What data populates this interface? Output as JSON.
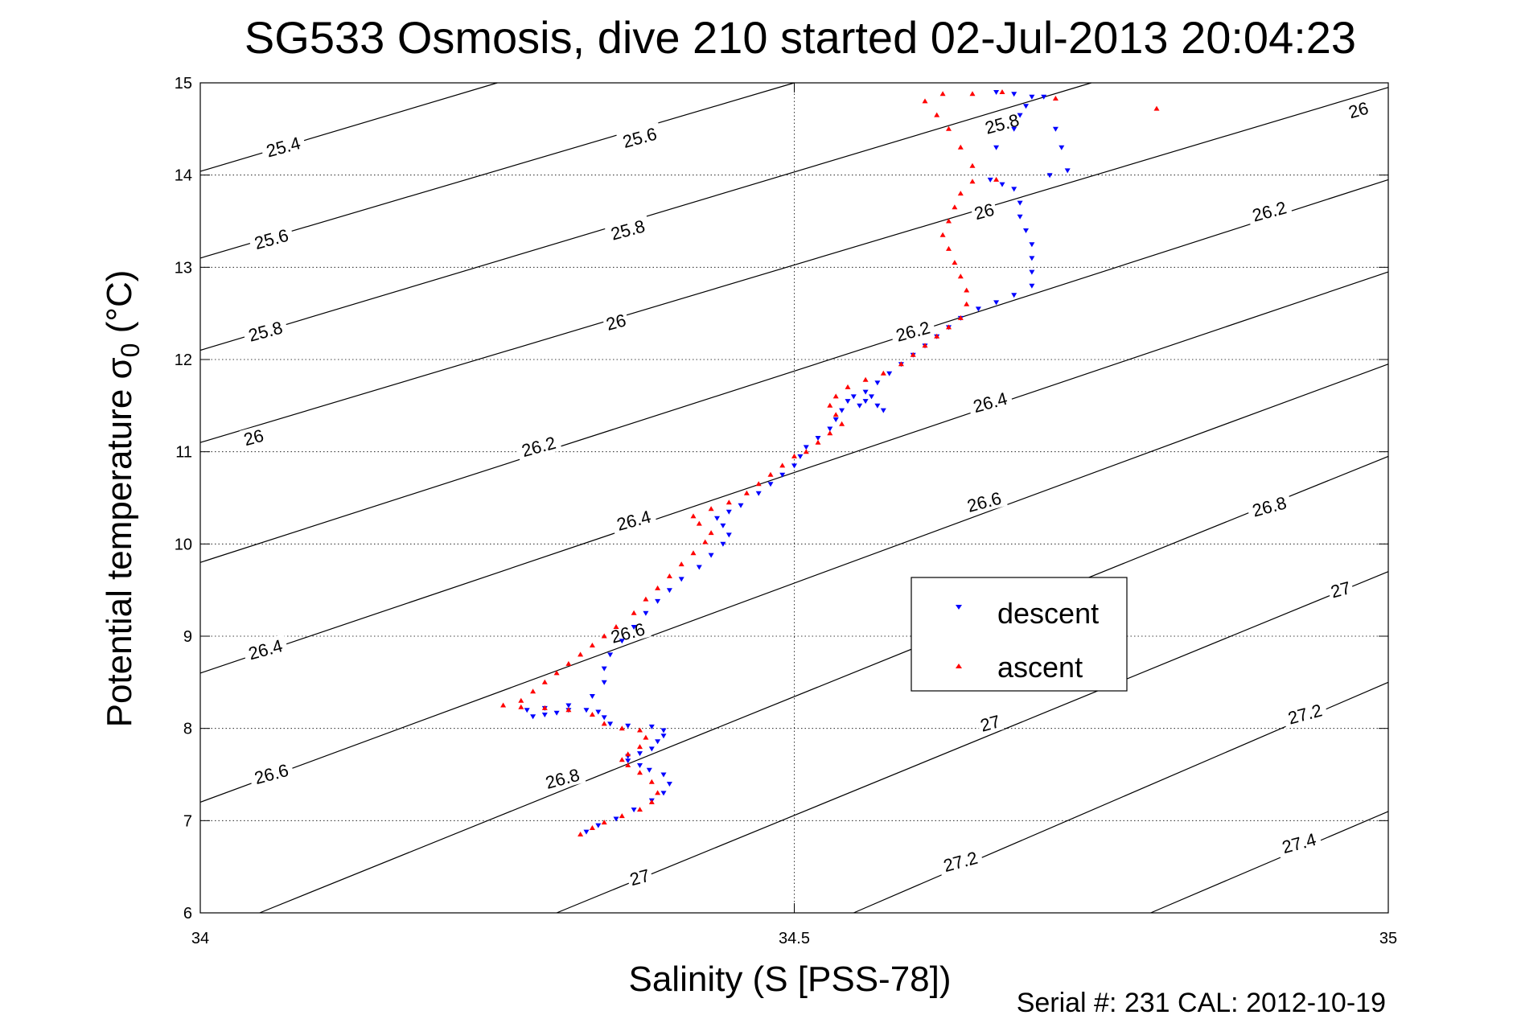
{
  "figure": {
    "title": "SG533 Osmosis, dive 210 started 02-Jul-2013 20:04:23",
    "footer": "Serial #: 231  CAL: 2012-10-19"
  },
  "colors": {
    "descent": "#0000ff",
    "ascent": "#ff0000",
    "axes": "#000000",
    "grid": "#000000"
  },
  "chart_data": {
    "type": "scatter",
    "title": "SG533 Osmosis, dive 210 started 02-Jul-2013 20:04:23",
    "xlabel": "Salinity (S [PSS-78])",
    "ylabel_main": "Potential temperature σ",
    "ylabel_sub": "0",
    "ylabel_unit": " (°C)",
    "xlim": [
      34,
      35
    ],
    "ylim": [
      6,
      15
    ],
    "xticks": [
      34,
      34.5,
      35
    ],
    "xtick_labels": [
      "34",
      "34.5",
      "35"
    ],
    "yticks": [
      6,
      7,
      8,
      9,
      10,
      11,
      12,
      13,
      14,
      15
    ],
    "ytick_labels": [
      "6",
      "7",
      "8",
      "9",
      "10",
      "11",
      "12",
      "13",
      "14",
      "15"
    ],
    "grid": "dotted at ticks",
    "legend": {
      "placement": "center-right",
      "entries": [
        "descent",
        "ascent"
      ]
    },
    "isopycnals": {
      "levels": [
        25.4,
        25.6,
        25.8,
        26,
        26.2,
        26.4,
        26.6,
        26.8,
        27,
        27.2,
        27.4
      ],
      "lines": [
        {
          "points": [
            [
              34,
              14.04
            ],
            [
              34.25,
              15
            ]
          ]
        },
        {
          "points": [
            [
              34,
              13.1
            ],
            [
              34.5,
              15
            ]
          ]
        },
        {
          "points": [
            [
              34,
              12.1
            ],
            [
              34.75,
              15
            ]
          ]
        },
        {
          "points": [
            [
              34,
              11.1
            ],
            [
              35,
              14.95
            ]
          ]
        },
        {
          "points": [
            [
              34,
              9.8
            ],
            [
              35,
              13.95
            ]
          ]
        },
        {
          "points": [
            [
              34,
              8.6
            ],
            [
              35,
              12.95
            ]
          ]
        },
        {
          "points": [
            [
              34,
              7.2
            ],
            [
              35,
              11.95
            ]
          ]
        },
        {
          "points": [
            [
              34.05,
              6
            ],
            [
              35,
              10.95
            ]
          ]
        },
        {
          "points": [
            [
              34.3,
              6
            ],
            [
              35,
              9.7
            ]
          ]
        },
        {
          "points": [
            [
              34.55,
              6
            ],
            [
              35,
              8.5
            ]
          ]
        },
        {
          "points": [
            [
              34.8,
              6
            ],
            [
              35,
              7.1
            ]
          ]
        }
      ],
      "labels": [
        {
          "text": "25.4",
          "x": 34.07,
          "y": 14.3
        },
        {
          "text": "25.6",
          "x": 34.06,
          "y": 13.3
        },
        {
          "text": "25.8",
          "x": 34.055,
          "y": 12.3
        },
        {
          "text": "26",
          "x": 34.045,
          "y": 11.15
        },
        {
          "text": "26.4",
          "x": 34.055,
          "y": 8.85
        },
        {
          "text": "26.6",
          "x": 34.06,
          "y": 7.5
        },
        {
          "text": "25.6",
          "x": 34.37,
          "y": 14.4
        },
        {
          "text": "25.8",
          "x": 34.36,
          "y": 13.4
        },
        {
          "text": "26",
          "x": 34.35,
          "y": 12.4
        },
        {
          "text": "26.2",
          "x": 34.285,
          "y": 11.05
        },
        {
          "text": "26.4",
          "x": 34.365,
          "y": 10.25
        },
        {
          "text": "26.6",
          "x": 34.36,
          "y": 9.03
        },
        {
          "text": "26.8",
          "x": 34.305,
          "y": 7.45
        },
        {
          "text": "27",
          "x": 34.37,
          "y": 6.38
        },
        {
          "text": "25.8",
          "x": 34.675,
          "y": 14.55
        },
        {
          "text": "26",
          "x": 34.66,
          "y": 13.6
        },
        {
          "text": "26.2",
          "x": 34.6,
          "y": 12.3
        },
        {
          "text": "26.4",
          "x": 34.665,
          "y": 11.53
        },
        {
          "text": "26.6",
          "x": 34.66,
          "y": 10.45
        },
        {
          "text": "27",
          "x": 34.665,
          "y": 8.05
        },
        {
          "text": "27.2",
          "x": 34.64,
          "y": 6.55
        },
        {
          "text": "26",
          "x": 34.975,
          "y": 14.7
        },
        {
          "text": "26.2",
          "x": 34.9,
          "y": 13.6
        },
        {
          "text": "26.8",
          "x": 34.9,
          "y": 10.4
        },
        {
          "text": "27",
          "x": 34.96,
          "y": 9.5
        },
        {
          "text": "27.2",
          "x": 34.93,
          "y": 8.15
        },
        {
          "text": "27.4",
          "x": 34.925,
          "y": 6.75
        }
      ]
    },
    "series": [
      {
        "name": "descent",
        "marker": "down-triangle",
        "points": [
          [
            34.325,
            6.88
          ],
          [
            34.335,
            6.95
          ],
          [
            34.35,
            7.02
          ],
          [
            34.365,
            7.12
          ],
          [
            34.38,
            7.22
          ],
          [
            34.39,
            7.3
          ],
          [
            34.395,
            7.4
          ],
          [
            34.39,
            7.5
          ],
          [
            34.378,
            7.55
          ],
          [
            34.37,
            7.6
          ],
          [
            34.36,
            7.65
          ],
          [
            34.36,
            7.7
          ],
          [
            34.37,
            7.73
          ],
          [
            34.38,
            7.78
          ],
          [
            34.385,
            7.86
          ],
          [
            34.39,
            7.92
          ],
          [
            34.39,
            7.98
          ],
          [
            34.38,
            8.02
          ],
          [
            34.36,
            8.03
          ],
          [
            34.345,
            8.05
          ],
          [
            34.34,
            8.12
          ],
          [
            34.335,
            8.18
          ],
          [
            34.325,
            8.2
          ],
          [
            34.31,
            8.2
          ],
          [
            34.3,
            8.17
          ],
          [
            34.29,
            8.15
          ],
          [
            34.28,
            8.13
          ],
          [
            34.275,
            8.2
          ],
          [
            34.29,
            8.22
          ],
          [
            34.31,
            8.25
          ],
          [
            34.33,
            8.35
          ],
          [
            34.34,
            8.5
          ],
          [
            34.34,
            8.65
          ],
          [
            34.345,
            8.8
          ],
          [
            34.355,
            8.95
          ],
          [
            34.365,
            9.1
          ],
          [
            34.375,
            9.25
          ],
          [
            34.385,
            9.38
          ],
          [
            34.395,
            9.5
          ],
          [
            34.405,
            9.62
          ],
          [
            34.42,
            9.75
          ],
          [
            34.43,
            9.88
          ],
          [
            34.44,
            10.0
          ],
          [
            34.445,
            10.1
          ],
          [
            34.44,
            10.2
          ],
          [
            34.435,
            10.28
          ],
          [
            34.445,
            10.35
          ],
          [
            34.455,
            10.42
          ],
          [
            34.47,
            10.55
          ],
          [
            34.48,
            10.65
          ],
          [
            34.49,
            10.75
          ],
          [
            34.5,
            10.85
          ],
          [
            34.505,
            10.95
          ],
          [
            34.51,
            11.05
          ],
          [
            34.52,
            11.15
          ],
          [
            34.53,
            11.25
          ],
          [
            34.535,
            11.35
          ],
          [
            34.54,
            11.45
          ],
          [
            34.545,
            11.55
          ],
          [
            34.55,
            11.6
          ],
          [
            34.56,
            11.65
          ],
          [
            34.565,
            11.6
          ],
          [
            34.56,
            11.55
          ],
          [
            34.555,
            11.5
          ],
          [
            34.57,
            11.5
          ],
          [
            34.575,
            11.45
          ],
          [
            34.57,
            11.75
          ],
          [
            34.58,
            11.85
          ],
          [
            34.59,
            11.95
          ],
          [
            34.6,
            12.05
          ],
          [
            34.61,
            12.15
          ],
          [
            34.62,
            12.25
          ],
          [
            34.63,
            12.35
          ],
          [
            34.64,
            12.45
          ],
          [
            34.655,
            12.55
          ],
          [
            34.67,
            12.62
          ],
          [
            34.685,
            12.7
          ],
          [
            34.7,
            12.8
          ],
          [
            34.7,
            12.95
          ],
          [
            34.7,
            13.1
          ],
          [
            34.7,
            13.25
          ],
          [
            34.695,
            13.4
          ],
          [
            34.69,
            13.55
          ],
          [
            34.69,
            13.7
          ],
          [
            34.685,
            13.85
          ],
          [
            34.675,
            13.9
          ],
          [
            34.665,
            13.95
          ],
          [
            34.67,
            14.3
          ],
          [
            34.685,
            14.5
          ],
          [
            34.69,
            14.65
          ],
          [
            34.695,
            14.75
          ],
          [
            34.7,
            14.85
          ],
          [
            34.685,
            14.88
          ],
          [
            34.67,
            14.9
          ],
          [
            34.71,
            14.85
          ],
          [
            34.72,
            14.5
          ],
          [
            34.725,
            14.3
          ],
          [
            34.73,
            14.05
          ],
          [
            34.715,
            14.0
          ]
        ]
      },
      {
        "name": "ascent",
        "marker": "up-triangle",
        "points": [
          [
            34.32,
            6.85
          ],
          [
            34.33,
            6.92
          ],
          [
            34.34,
            6.98
          ],
          [
            34.355,
            7.05
          ],
          [
            34.37,
            7.12
          ],
          [
            34.38,
            7.2
          ],
          [
            34.385,
            7.3
          ],
          [
            34.38,
            7.42
          ],
          [
            34.37,
            7.52
          ],
          [
            34.36,
            7.6
          ],
          [
            34.355,
            7.66
          ],
          [
            34.36,
            7.72
          ],
          [
            34.37,
            7.8
          ],
          [
            34.375,
            7.9
          ],
          [
            34.37,
            7.98
          ],
          [
            34.355,
            8.0
          ],
          [
            34.34,
            8.05
          ],
          [
            34.33,
            8.15
          ],
          [
            34.31,
            8.2
          ],
          [
            34.29,
            8.22
          ],
          [
            34.27,
            8.23
          ],
          [
            34.255,
            8.25
          ],
          [
            34.27,
            8.3
          ],
          [
            34.28,
            8.4
          ],
          [
            34.29,
            8.5
          ],
          [
            34.3,
            8.6
          ],
          [
            34.31,
            8.7
          ],
          [
            34.32,
            8.8
          ],
          [
            34.33,
            8.9
          ],
          [
            34.34,
            9.0
          ],
          [
            34.35,
            9.1
          ],
          [
            34.365,
            9.25
          ],
          [
            34.375,
            9.4
          ],
          [
            34.385,
            9.52
          ],
          [
            34.395,
            9.65
          ],
          [
            34.405,
            9.78
          ],
          [
            34.415,
            9.9
          ],
          [
            34.425,
            10.02
          ],
          [
            34.43,
            10.12
          ],
          [
            34.42,
            10.22
          ],
          [
            34.415,
            10.3
          ],
          [
            34.43,
            10.38
          ],
          [
            34.445,
            10.45
          ],
          [
            34.46,
            10.55
          ],
          [
            34.47,
            10.65
          ],
          [
            34.48,
            10.75
          ],
          [
            34.49,
            10.85
          ],
          [
            34.5,
            10.95
          ],
          [
            34.51,
            11.0
          ],
          [
            34.52,
            11.1
          ],
          [
            34.53,
            11.2
          ],
          [
            34.54,
            11.3
          ],
          [
            34.535,
            11.4
          ],
          [
            34.53,
            11.5
          ],
          [
            34.535,
            11.6
          ],
          [
            34.545,
            11.7
          ],
          [
            34.56,
            11.78
          ],
          [
            34.575,
            11.85
          ],
          [
            34.59,
            11.95
          ],
          [
            34.6,
            12.05
          ],
          [
            34.61,
            12.15
          ],
          [
            34.62,
            12.25
          ],
          [
            34.63,
            12.35
          ],
          [
            34.64,
            12.45
          ],
          [
            34.645,
            12.6
          ],
          [
            34.645,
            12.75
          ],
          [
            34.64,
            12.9
          ],
          [
            34.635,
            13.05
          ],
          [
            34.63,
            13.2
          ],
          [
            34.625,
            13.35
          ],
          [
            34.63,
            13.5
          ],
          [
            34.635,
            13.65
          ],
          [
            34.64,
            13.8
          ],
          [
            34.65,
            13.93
          ],
          [
            34.67,
            13.95
          ],
          [
            34.65,
            14.1
          ],
          [
            34.64,
            14.3
          ],
          [
            34.63,
            14.5
          ],
          [
            34.62,
            14.65
          ],
          [
            34.61,
            14.8
          ],
          [
            34.625,
            14.88
          ],
          [
            34.65,
            14.88
          ],
          [
            34.675,
            14.9
          ],
          [
            34.72,
            14.83
          ],
          [
            34.805,
            14.72
          ]
        ]
      }
    ]
  }
}
